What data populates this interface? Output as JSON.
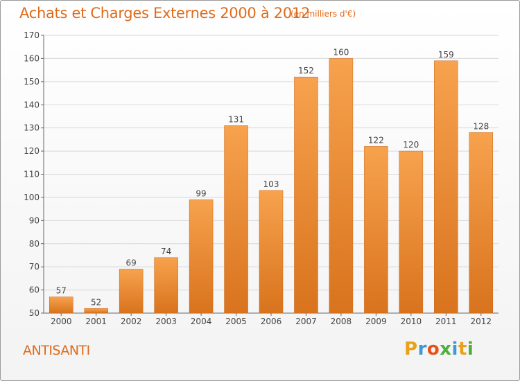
{
  "header": {
    "title": "Achats et Charges Externes 2000 à 2012",
    "subtitle": "(en milliers d'€)"
  },
  "footer": {
    "place": "ANTISANTI",
    "brand": {
      "letters": [
        "P",
        "r",
        "o",
        "x",
        "i",
        "t",
        "i"
      ],
      "colors": [
        "#e8a21a",
        "#3a9ad9",
        "#e8501a",
        "#4caf3a",
        "#3a9ad9",
        "#e8a21a",
        "#4caf3a"
      ]
    }
  },
  "colors": {
    "bar_light": "#f7a24e",
    "bar_dark": "#d9731d",
    "accent": "#e06a1a",
    "grid": "#d8d8d8"
  },
  "chart_data": {
    "type": "bar",
    "title": "Achats et Charges Externes 2000 à 2012",
    "subtitle": "(en milliers d'€)",
    "categories": [
      "2000",
      "2001",
      "2002",
      "2003",
      "2004",
      "2005",
      "2006",
      "2007",
      "2008",
      "2009",
      "2010",
      "2011",
      "2012"
    ],
    "values": [
      57,
      52,
      69,
      74,
      99,
      131,
      103,
      152,
      160,
      122,
      120,
      159,
      128
    ],
    "value_labels": [
      "57",
      "52",
      "69",
      "74",
      "99",
      "131",
      "103",
      "152",
      "160",
      "122",
      "120",
      "159",
      "128"
    ],
    "ylim": [
      50,
      170
    ],
    "yticks": [
      "50",
      "60",
      "70",
      "80",
      "90",
      "100",
      "110",
      "120",
      "130",
      "140",
      "150",
      "160",
      "170"
    ],
    "xlabel": "",
    "ylabel": "",
    "grid": true,
    "legend": "none"
  }
}
